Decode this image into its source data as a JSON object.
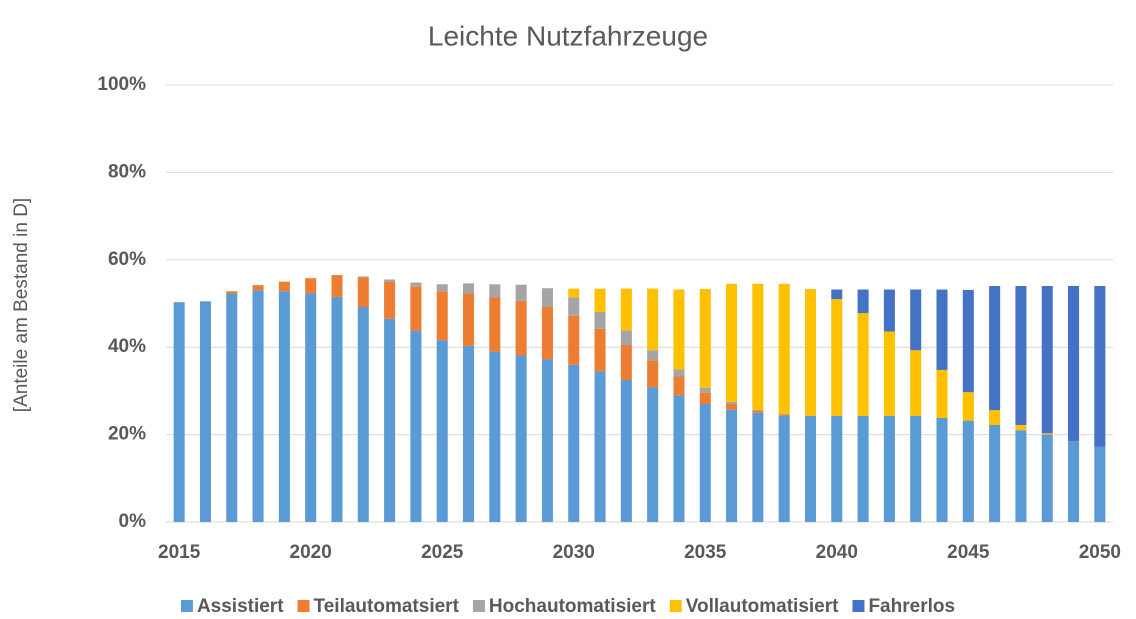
{
  "chart_data": {
    "type": "stacked_bar",
    "title": "Leichte Nutzfahrzeuge",
    "y_label": "[Anteile am Bestand in D]",
    "categories": [
      "2015",
      null,
      null,
      null,
      null,
      "2020",
      null,
      null,
      null,
      null,
      "2025",
      null,
      null,
      null,
      null,
      "2030",
      null,
      null,
      null,
      null,
      "2035",
      null,
      null,
      null,
      null,
      "2040",
      null,
      null,
      null,
      null,
      "2045",
      null,
      null,
      null,
      null,
      "2050"
    ],
    "series": [
      {
        "name": "Assistiert",
        "color": "#5b9bd5",
        "values": [
          50.3,
          50.5,
          52.3,
          53,
          52.8,
          52.3,
          51.5,
          49.2,
          46.5,
          43.8,
          41.6,
          40.3,
          39,
          38.1,
          37.2,
          36,
          34.5,
          32.5,
          30.8,
          29,
          27,
          25.7,
          25,
          24.4,
          24.3,
          24.3,
          24.3,
          24.3,
          24.3,
          23.8,
          23.2,
          22.2,
          21,
          20,
          18.5,
          17.2
        ]
      },
      {
        "name": "Teilautomatsiert",
        "color": "#ed7d31",
        "values": [
          0,
          0,
          0.5,
          1.2,
          2.2,
          3.5,
          5,
          6.8,
          8.5,
          10,
          11.2,
          12,
          12.4,
          12.5,
          12,
          11.2,
          9.7,
          8,
          6.2,
          4.3,
          2.6,
          1.3,
          0.5,
          0.2,
          0,
          0,
          0,
          0,
          0,
          0,
          0,
          0,
          0,
          0,
          0,
          0
        ]
      },
      {
        "name": "Hochautomatisiert",
        "color": "#a5a5a5",
        "values": [
          0,
          0,
          0,
          0,
          0,
          0,
          0,
          0.2,
          0.5,
          1,
          1.6,
          2.3,
          3,
          3.7,
          4.3,
          4.2,
          3.9,
          3.3,
          2.3,
          1.6,
          1.1,
          0.5,
          0.2,
          0,
          0,
          0,
          0,
          0,
          0,
          0,
          0,
          0,
          0,
          0,
          0,
          0
        ]
      },
      {
        "name": "Vollautomatisiert",
        "color": "#ffc000",
        "values": [
          0,
          0,
          0,
          0,
          0,
          0,
          0,
          0,
          0,
          0,
          0,
          0,
          0,
          0,
          0,
          2,
          5.3,
          9.6,
          14.1,
          18.3,
          22.6,
          27,
          28.8,
          29.9,
          29,
          26.7,
          23.5,
          19.3,
          15,
          11,
          6.5,
          3.4,
          1.2,
          0.3,
          0,
          0
        ]
      },
      {
        "name": "Fahrerlos",
        "color": "#4472c4",
        "values": [
          0,
          0,
          0,
          0,
          0,
          0,
          0,
          0,
          0,
          0,
          0,
          0,
          0,
          0,
          0,
          0,
          0,
          0,
          0,
          0,
          0,
          0,
          0,
          0,
          0,
          2.2,
          5.4,
          9.6,
          13.9,
          18.4,
          23.4,
          28.4,
          31.8,
          33.7,
          35.5,
          36.8
        ]
      }
    ],
    "ylim": [
      0,
      100
    ],
    "yticks": [
      {
        "value": 0,
        "label": "0%"
      },
      {
        "value": 20,
        "label": "20%"
      },
      {
        "value": 40,
        "label": "40%"
      },
      {
        "value": 60,
        "label": "60%"
      },
      {
        "value": 80,
        "label": "80%"
      },
      {
        "value": 100,
        "label": "100%"
      }
    ],
    "grid": true,
    "legend": "bottom"
  }
}
